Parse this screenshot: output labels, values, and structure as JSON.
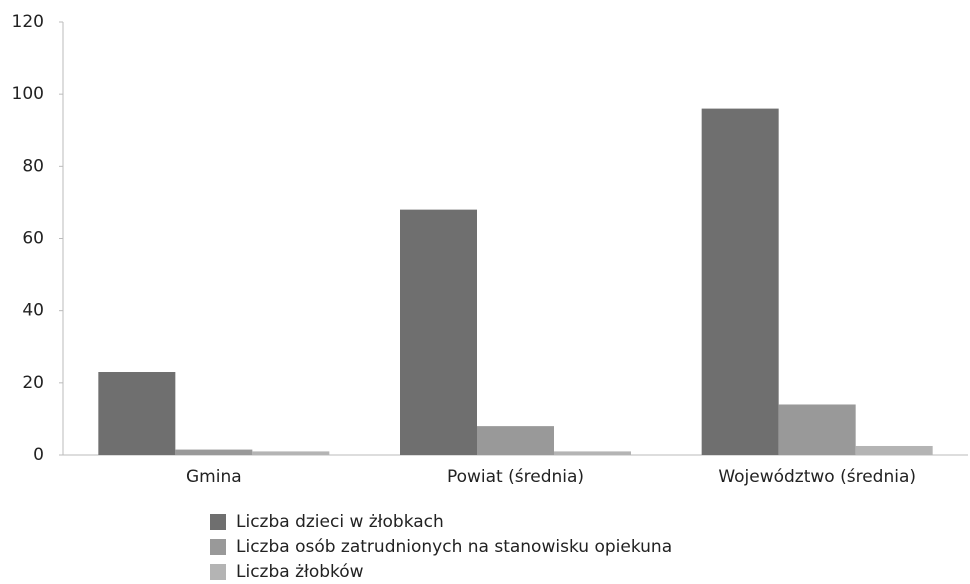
{
  "chart_data": {
    "type": "bar",
    "categories": [
      "Gmina",
      "Powiat (średnia)",
      "Województwo (średnia)"
    ],
    "series": [
      {
        "name": "Liczba dzieci w żłobkach",
        "color": "#6f6f6f",
        "values": [
          23,
          68,
          96
        ]
      },
      {
        "name": "Liczba osób zatrudnionych na stanowisku opiekuna",
        "color": "#999999",
        "values": [
          1.5,
          8,
          14
        ]
      },
      {
        "name": "Liczba żłobków",
        "color": "#b4b4b4",
        "values": [
          1,
          1,
          2.5
        ]
      }
    ],
    "ylim": [
      0,
      120
    ],
    "yticks": [
      0,
      20,
      40,
      60,
      80,
      100,
      120
    ],
    "grid": false,
    "legend": "bottom"
  }
}
